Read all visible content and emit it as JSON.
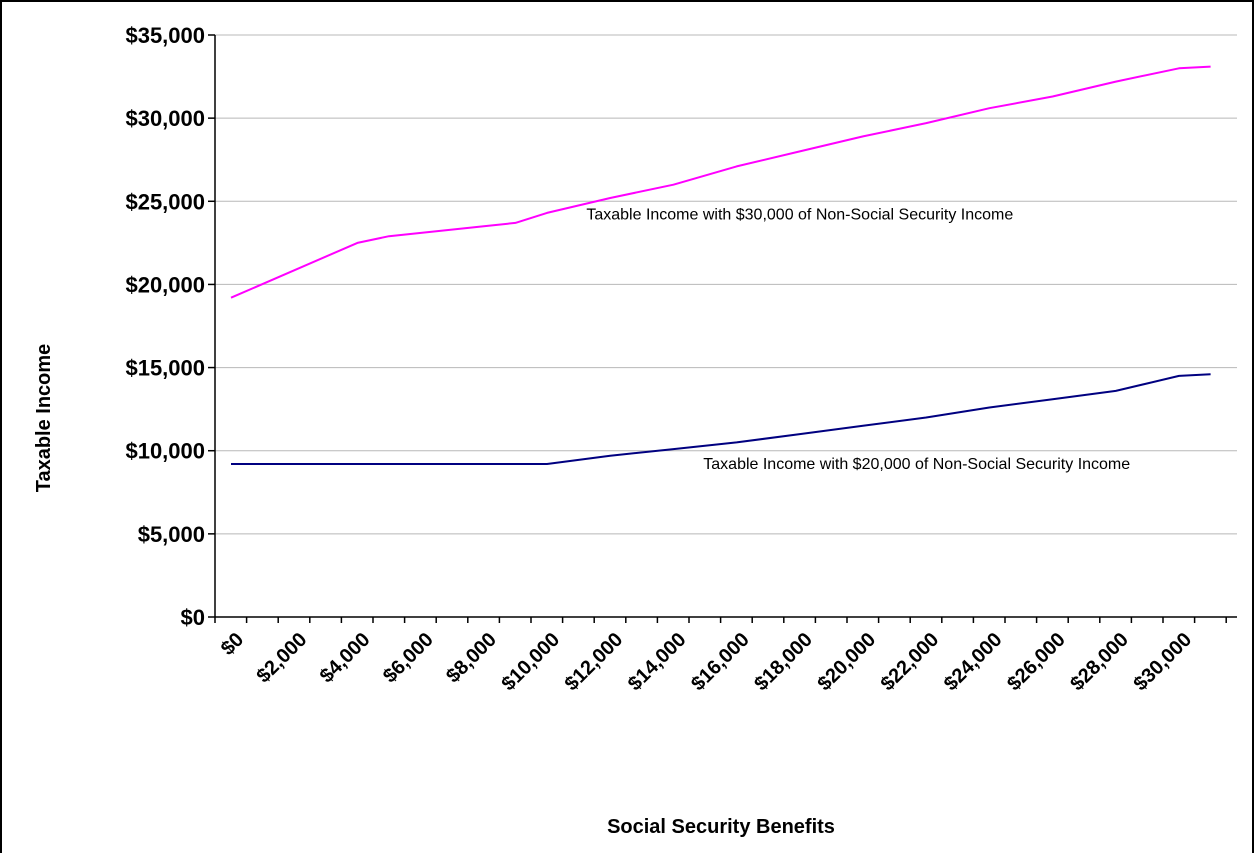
{
  "chart_data": {
    "type": "line",
    "title": "",
    "xlabel": "Social Security Benefits",
    "ylabel": "Taxable Income",
    "xlim": [
      0,
      31000
    ],
    "ylim": [
      0,
      35000
    ],
    "grid": true,
    "legend": "none",
    "x_ticks": [
      {
        "value": 0,
        "label": "$0"
      },
      {
        "value": 2000,
        "label": "$2,000"
      },
      {
        "value": 4000,
        "label": "$4,000"
      },
      {
        "value": 6000,
        "label": "$6,000"
      },
      {
        "value": 8000,
        "label": "$8,000"
      },
      {
        "value": 10000,
        "label": "$10,000"
      },
      {
        "value": 12000,
        "label": "$12,000"
      },
      {
        "value": 14000,
        "label": "$14,000"
      },
      {
        "value": 16000,
        "label": "$16,000"
      },
      {
        "value": 18000,
        "label": "$18,000"
      },
      {
        "value": 20000,
        "label": "$20,000"
      },
      {
        "value": 22000,
        "label": "$22,000"
      },
      {
        "value": 24000,
        "label": "$24,000"
      },
      {
        "value": 26000,
        "label": "$26,000"
      },
      {
        "value": 28000,
        "label": "$28,000"
      },
      {
        "value": 30000,
        "label": "$30,000"
      }
    ],
    "y_ticks": [
      {
        "value": 0,
        "label": "$0"
      },
      {
        "value": 5000,
        "label": "$5,000"
      },
      {
        "value": 10000,
        "label": "$10,000"
      },
      {
        "value": 15000,
        "label": "$15,000"
      },
      {
        "value": 20000,
        "label": "$20,000"
      },
      {
        "value": 25000,
        "label": "$25,000"
      },
      {
        "value": 30000,
        "label": "$30,000"
      },
      {
        "value": 35000,
        "label": "$35,000"
      }
    ],
    "series": [
      {
        "name": "Taxable Income with $30,000 of Non-Social Security Income",
        "color": "#ff00ff",
        "x": [
          0,
          4000,
          5000,
          8000,
          9000,
          10000,
          12000,
          14000,
          16000,
          18000,
          20000,
          22000,
          24000,
          26000,
          28000,
          30000,
          31000
        ],
        "y": [
          19200,
          22500,
          22900,
          23500,
          23700,
          24300,
          25200,
          26000,
          27100,
          28000,
          28900,
          29700,
          30600,
          31300,
          32200,
          33000,
          33100
        ]
      },
      {
        "name": "Taxable Income with $20,000 of Non-Social Security Income",
        "color": "#000080",
        "x": [
          0,
          2000,
          4000,
          6000,
          8000,
          10000,
          12000,
          14000,
          16000,
          18000,
          20000,
          22000,
          24000,
          26000,
          28000,
          30000,
          31000
        ],
        "y": [
          9200,
          9200,
          9200,
          9200,
          9200,
          9200,
          9700,
          10100,
          10500,
          11000,
          11500,
          12000,
          12600,
          13100,
          13600,
          14500,
          14600
        ]
      }
    ],
    "annotations": [
      {
        "text": "Taxable Income with $30,000 of Non-Social Security Income",
        "x": 18000,
        "y": 23900
      },
      {
        "text": "Taxable Income with $20,000 of Non-Social Security Income",
        "x": 21700,
        "y": 8900
      }
    ]
  }
}
